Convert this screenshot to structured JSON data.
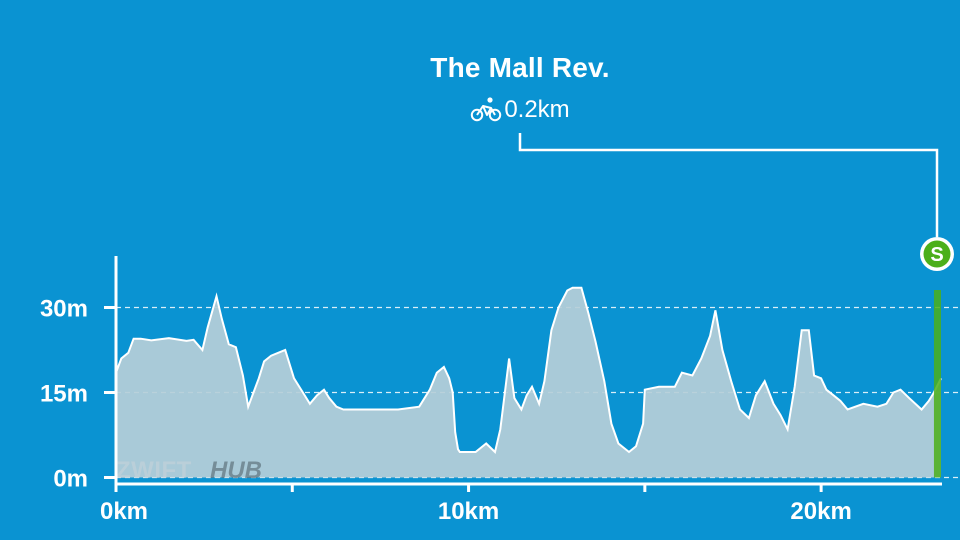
{
  "segment": {
    "name": "The Mall Rev.",
    "distance": "0.2km",
    "activity_icon": "bicycle-icon"
  },
  "marker": {
    "label": "S",
    "color": "#4caf1a"
  },
  "watermark": {
    "part1": "ZWIFT",
    "part2": "HUB"
  },
  "colors": {
    "background": "#0a93d2",
    "profile_fill": "#b6cfd8",
    "profile_stroke": "#ffffff",
    "segment_fill": "#4caf1a"
  },
  "chart_data": {
    "type": "area",
    "title": "The Mall Rev.",
    "xlabel": "",
    "ylabel": "",
    "xlim": [
      0,
      23.4
    ],
    "ylim": [
      0,
      38
    ],
    "x_ticks": [
      0,
      5,
      10,
      15,
      20
    ],
    "x_tick_labels": [
      "0km",
      "",
      "10km",
      "",
      "20km"
    ],
    "y_ticks": [
      0,
      15,
      30
    ],
    "y_tick_labels": [
      "0m",
      "15m",
      "30m"
    ],
    "grid": "horizontal dashed",
    "segment_range": [
      23.2,
      23.4
    ],
    "x": [
      0,
      0.15,
      0.35,
      0.5,
      0.7,
      1.0,
      1.5,
      2.0,
      2.2,
      2.45,
      2.6,
      2.85,
      3.0,
      3.2,
      3.4,
      3.6,
      3.75,
      3.9,
      4.05,
      4.2,
      4.4,
      4.6,
      4.8,
      5.05,
      5.3,
      5.5,
      5.7,
      5.9,
      6.05,
      6.25,
      6.45,
      6.65,
      7.0,
      8.0,
      8.6,
      8.9,
      9.1,
      9.3,
      9.45,
      9.55,
      9.62,
      9.7,
      9.75,
      9.85,
      10.2,
      10.5,
      10.75,
      10.9,
      11.15,
      11.3,
      11.5,
      11.65,
      11.8,
      12.0,
      12.15,
      12.35,
      12.55,
      12.8,
      12.95,
      13.2,
      13.4,
      13.6,
      13.85,
      14.05,
      14.25,
      14.55,
      14.75,
      14.95,
      15.0,
      15.4,
      15.6,
      15.85,
      16.05,
      16.35,
      16.6,
      16.85,
      17.0,
      17.2,
      17.45,
      17.7,
      17.95,
      18.15,
      18.4,
      18.65,
      18.85,
      19.05,
      19.25,
      19.45,
      19.65,
      19.8,
      20.0,
      20.15,
      20.35,
      20.55,
      20.75,
      21.2,
      21.6,
      21.85,
      22.05,
      22.25,
      22.5,
      22.85,
      23.05,
      23.2,
      23.4
    ],
    "y": [
      18.5,
      21,
      22,
      24.5,
      24.5,
      24.2,
      24.6,
      24.1,
      24.3,
      22.5,
      26.5,
      32,
      28,
      23.5,
      23,
      18,
      12.5,
      15,
      17.5,
      20.5,
      21.5,
      22,
      22.5,
      17.5,
      15,
      13,
      14.5,
      15.5,
      14,
      12.5,
      12,
      12,
      12,
      12,
      12.5,
      15.5,
      18.5,
      19.5,
      17.5,
      15,
      8,
      5,
      4.5,
      4.5,
      4.5,
      6,
      4.5,
      8.5,
      21,
      14,
      12,
      14.5,
      16,
      13,
      17,
      26,
      30,
      33,
      33.5,
      33.5,
      29,
      24,
      17,
      9.5,
      6,
      4.5,
      5.5,
      9.5,
      15.5,
      16,
      16,
      16,
      18.5,
      18,
      21,
      25,
      29.5,
      22.5,
      17,
      12,
      10.5,
      14.5,
      17,
      13,
      11,
      8.5,
      16,
      26,
      26,
      18,
      17.5,
      15.5,
      14.5,
      13.5,
      12,
      13,
      12.5,
      13,
      15,
      15.5,
      14,
      12,
      13.5,
      15,
      17.5
    ]
  }
}
